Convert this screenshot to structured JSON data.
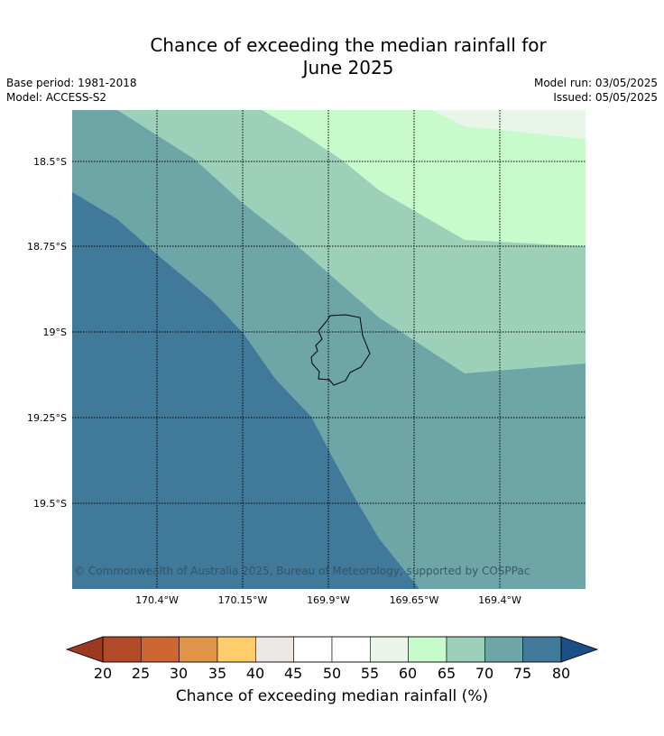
{
  "title_line1": "Chance of exceeding the median rainfall for",
  "title_line2": "June 2025",
  "meta": {
    "base_period": "Base period: 1981-2018",
    "model": "Model: ACCESS-S2",
    "model_run": "Model run: 03/05/2025",
    "issued": "Issued: 05/05/2025"
  },
  "map": {
    "lat_labels": [
      "18.5°S",
      "18.75°S",
      "19°S",
      "19.25°S",
      "19.5°S"
    ],
    "lon_labels": [
      "170.4°W",
      "170.15°W",
      "169.9°W",
      "169.65°W",
      "169.4°W"
    ],
    "copyright": "© Commonwealth of Australia 2025, Bureau of Meteorology, supported by COSPPac",
    "colors": {
      "band_75_80": "#41799a",
      "band_70_75": "#6ea5a7",
      "band_65_70": "#9dd0b9",
      "band_60_65": "#c7fbcc",
      "band_55_60": "#e9f5e9",
      "coastline": "#000000"
    }
  },
  "colorbar": {
    "ticks": [
      "20",
      "25",
      "30",
      "35",
      "40",
      "45",
      "50",
      "55",
      "60",
      "65",
      "70",
      "75",
      "80"
    ],
    "colors": [
      "#b34a27",
      "#cd6633",
      "#e19548",
      "#fccd6a",
      "#ede8e4",
      "#ffffff",
      "#ffffff",
      "#e9f5e9",
      "#c7fbcc",
      "#9dd0b9",
      "#6ea5a7",
      "#41799a"
    ],
    "under_color": "#9c3a1f",
    "over_color": "#1d4f87",
    "label": "Chance of exceeding median rainfall (%)"
  }
}
